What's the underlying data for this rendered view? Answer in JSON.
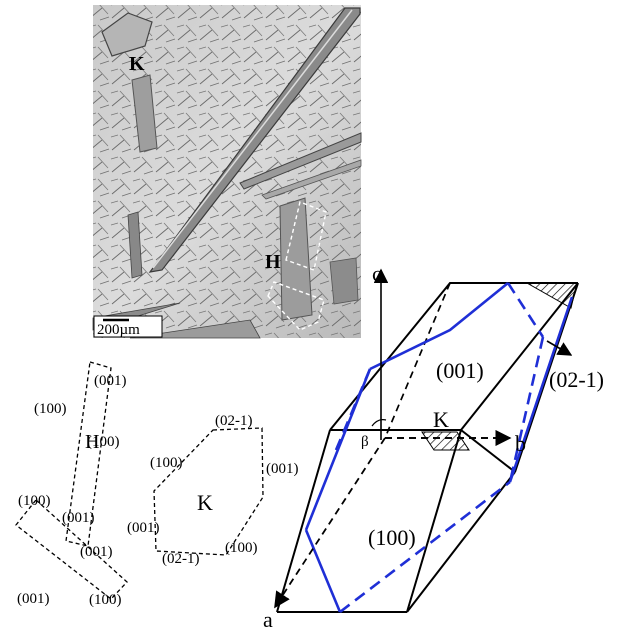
{
  "micrograph": {
    "crystal_k_label": "K",
    "crystal_h_label": "H",
    "scale_bar_label": "200µm"
  },
  "sketch_h": {
    "label": "H",
    "faces": [
      "(001)",
      "(100)",
      "(100)",
      "(100)",
      "(001)",
      "(001)",
      "(001)",
      "(100)"
    ]
  },
  "sketch_k": {
    "label": "K",
    "faces": [
      "(02-1)",
      "(100)",
      "(001)",
      "(001)",
      "(100)",
      "(02-1)"
    ]
  },
  "unit_cell": {
    "axes": {
      "a": "a",
      "b": "b",
      "c": "c",
      "beta": "β"
    },
    "crystal_label": "K",
    "faces": {
      "top": "(001)",
      "front": "(100)",
      "side": "(02-1)"
    },
    "colors": {
      "cell_edges": "#000000",
      "crystal_outline": "#1f2fd6"
    }
  }
}
